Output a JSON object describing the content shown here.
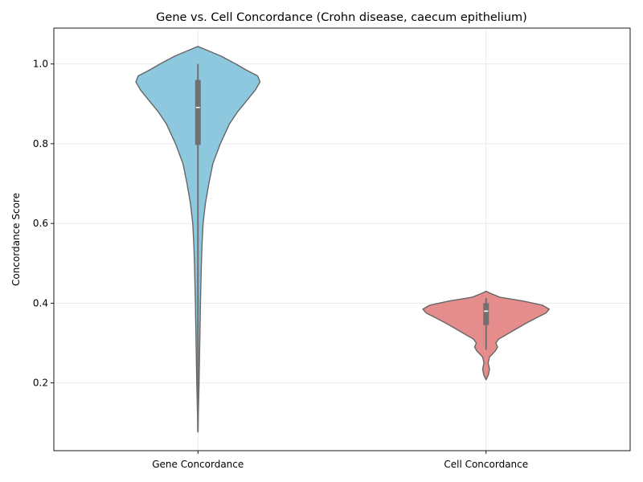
{
  "chart_data": {
    "type": "violin",
    "title": "Gene vs. Cell Concordance (Crohn disease, caecum epithelium)",
    "xlabel": "",
    "ylabel": "Concordance Score",
    "ylim": [
      0.03,
      1.09
    ],
    "yticks": [
      0.2,
      0.4,
      0.6,
      0.8,
      1.0
    ],
    "ytick_labels": [
      "0.2",
      "0.4",
      "0.6",
      "0.8",
      "1.0"
    ],
    "grid": true,
    "categories": [
      "Gene Concordance",
      "Cell Concordance"
    ],
    "series": [
      {
        "category": "Gene Concordance",
        "color": "#8ec8df",
        "whisker_min": 0.077,
        "q1": 0.797,
        "median": 0.891,
        "q3": 0.96,
        "whisker_max": 1.0,
        "kde_min": 0.077,
        "kde_max": 1.044,
        "density": [
          [
            0.077,
            0.0
          ],
          [
            0.15,
            0.006
          ],
          [
            0.2,
            0.01
          ],
          [
            0.3,
            0.016
          ],
          [
            0.4,
            0.022
          ],
          [
            0.5,
            0.03
          ],
          [
            0.55,
            0.036
          ],
          [
            0.6,
            0.045
          ],
          [
            0.65,
            0.065
          ],
          [
            0.7,
            0.095
          ],
          [
            0.75,
            0.13
          ],
          [
            0.8,
            0.195
          ],
          [
            0.85,
            0.275
          ],
          [
            0.88,
            0.345
          ],
          [
            0.91,
            0.43
          ],
          [
            0.935,
            0.5
          ],
          [
            0.955,
            0.54
          ],
          [
            0.97,
            0.52
          ],
          [
            0.985,
            0.42
          ],
          [
            1.0,
            0.33
          ],
          [
            1.02,
            0.2
          ],
          [
            1.035,
            0.075
          ],
          [
            1.044,
            0.0
          ]
        ]
      },
      {
        "category": "Cell Concordance",
        "color": "#e58c8c",
        "whisker_min": 0.283,
        "q1": 0.345,
        "median": 0.38,
        "q3": 0.4,
        "whisker_max": 0.413,
        "kde_min": 0.208,
        "kde_max": 0.43,
        "density": [
          [
            0.208,
            0.0
          ],
          [
            0.22,
            0.02
          ],
          [
            0.235,
            0.03
          ],
          [
            0.25,
            0.018
          ],
          [
            0.265,
            0.03
          ],
          [
            0.28,
            0.08
          ],
          [
            0.29,
            0.1
          ],
          [
            0.3,
            0.085
          ],
          [
            0.31,
            0.11
          ],
          [
            0.32,
            0.17
          ],
          [
            0.335,
            0.26
          ],
          [
            0.35,
            0.35
          ],
          [
            0.365,
            0.45
          ],
          [
            0.375,
            0.52
          ],
          [
            0.385,
            0.55
          ],
          [
            0.395,
            0.49
          ],
          [
            0.405,
            0.33
          ],
          [
            0.415,
            0.12
          ],
          [
            0.425,
            0.035
          ],
          [
            0.43,
            0.0
          ]
        ]
      }
    ]
  }
}
